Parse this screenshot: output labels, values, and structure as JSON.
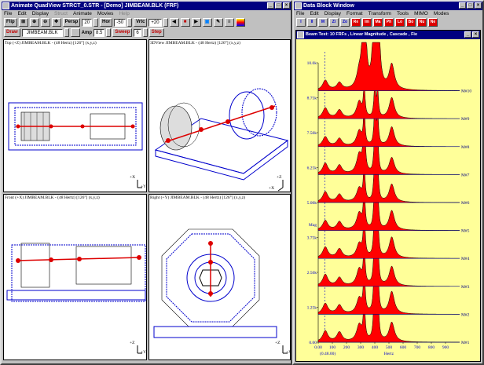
{
  "left": {
    "title": "Animate QuadView STRCT_0.STR - [Demo] JIMBEAM.BLK (FRF)",
    "menu": [
      "File",
      "Edit",
      "Display",
      "Struct",
      "Animate",
      "Movies",
      "Help"
    ],
    "toolbar1": {
      "flip": "Flip",
      "persp_label": "Persp",
      "persp_value": "20",
      "hor_label": "Hor",
      "hor_value": "-50",
      "ver_label": "Vrtc",
      "ver_value": "+20"
    },
    "toolbar2": {
      "draw": "Draw",
      "file": "JIMBEAM.BLK",
      "amp_label": "Amp",
      "amp_value": "8.5",
      "sweep_label": "Sweep",
      "sweep_value": "6",
      "step": "Step"
    },
    "panes": [
      {
        "title": "Top (+Z) JIMBEAM.BLK - (48 Hertz) [126°] (x,y,z)",
        "axis1": "+X",
        "axis2": "+Y"
      },
      {
        "title": "3DView JIMBEAM.BLK - (48 Hertz) [126°] (x,y,z)",
        "axis1": "+Z",
        "axis2": "+X"
      },
      {
        "title": "Front (+X) JIMBEAM.BLK - (48 Hertz) [126°] (x,y,z)",
        "axis1": "+Z",
        "axis2": "+Y"
      },
      {
        "title": "Right (+Y) JIMBEAM.BLK - (48 Hertz) [126°] (x,y,z)",
        "axis1": "+Z",
        "axis2": "+X"
      }
    ]
  },
  "right": {
    "title": "Data Block Window",
    "menu": [
      "File",
      "Edit",
      "Display",
      "Format",
      "Transform",
      "Tools",
      "MIMO",
      "Modes"
    ],
    "tools": [
      "I",
      "II",
      "M",
      "Zi",
      "Zo",
      "Re",
      "Im",
      "Ma",
      "Ph",
      "Lo",
      "Bo",
      "Nu",
      "Ne"
    ],
    "plot_title": "Beam Test: 10 FRFs , Linear Magnitude , Cascade , Fie",
    "colors": {
      "plot_bg": "#ffff99",
      "fill": "#ff0000",
      "accent": "#0000cc"
    }
  },
  "chart_data": {
    "type": "area",
    "title": "Beam Test: 10 FRFs , Linear Magnitude , Cascade , Fie",
    "xlabel": "Hertz",
    "ylabel": "Mag",
    "x_ticks": [
      0,
      100,
      200,
      300,
      400,
      500,
      600,
      700,
      800,
      900
    ],
    "x_tick_labels": [
      "0.00",
      "100",
      "200",
      "300",
      "400",
      "500",
      "600",
      "700",
      "800",
      "900"
    ],
    "xlim": [
      0,
      1000
    ],
    "y_tick_labels": [
      "0.00",
      "1.25k",
      "2.50k",
      "3.75k",
      "5.00k",
      "6.25k",
      "7.50k",
      "8.75k",
      "10.0k"
    ],
    "ylim": [
      0,
      10000
    ],
    "cursor_label": "(0.48.00)",
    "cascade_step": 1000,
    "peaks_hz": [
      50,
      150,
      290,
      325,
      400,
      420,
      520
    ],
    "series": [
      {
        "name": "M#1",
        "amps": [
          400,
          350,
          600,
          1500,
          2800,
          2300,
          700
        ]
      },
      {
        "name": "M#2",
        "amps": [
          380,
          320,
          550,
          1600,
          2600,
          2000,
          800
        ]
      },
      {
        "name": "M#3",
        "amps": [
          420,
          300,
          600,
          1400,
          2400,
          1900,
          700
        ]
      },
      {
        "name": "M#4",
        "amps": [
          400,
          330,
          500,
          1700,
          2200,
          1700,
          750
        ]
      },
      {
        "name": "M#5",
        "amps": [
          350,
          300,
          600,
          1500,
          2000,
          1600,
          700
        ]
      },
      {
        "name": "M#6",
        "amps": [
          380,
          280,
          500,
          1300,
          1800,
          1500,
          650
        ]
      },
      {
        "name": "M#7",
        "amps": [
          400,
          320,
          700,
          2600,
          1600,
          1400,
          600
        ]
      },
      {
        "name": "M#8",
        "amps": [
          350,
          280,
          550,
          1200,
          1400,
          1200,
          700
        ]
      },
      {
        "name": "M#9",
        "amps": [
          380,
          300,
          600,
          1100,
          1200,
          1000,
          750
        ]
      },
      {
        "name": "M#10",
        "amps": [
          360,
          260,
          550,
          10600,
          9400,
          9400,
          900
        ]
      }
    ]
  }
}
